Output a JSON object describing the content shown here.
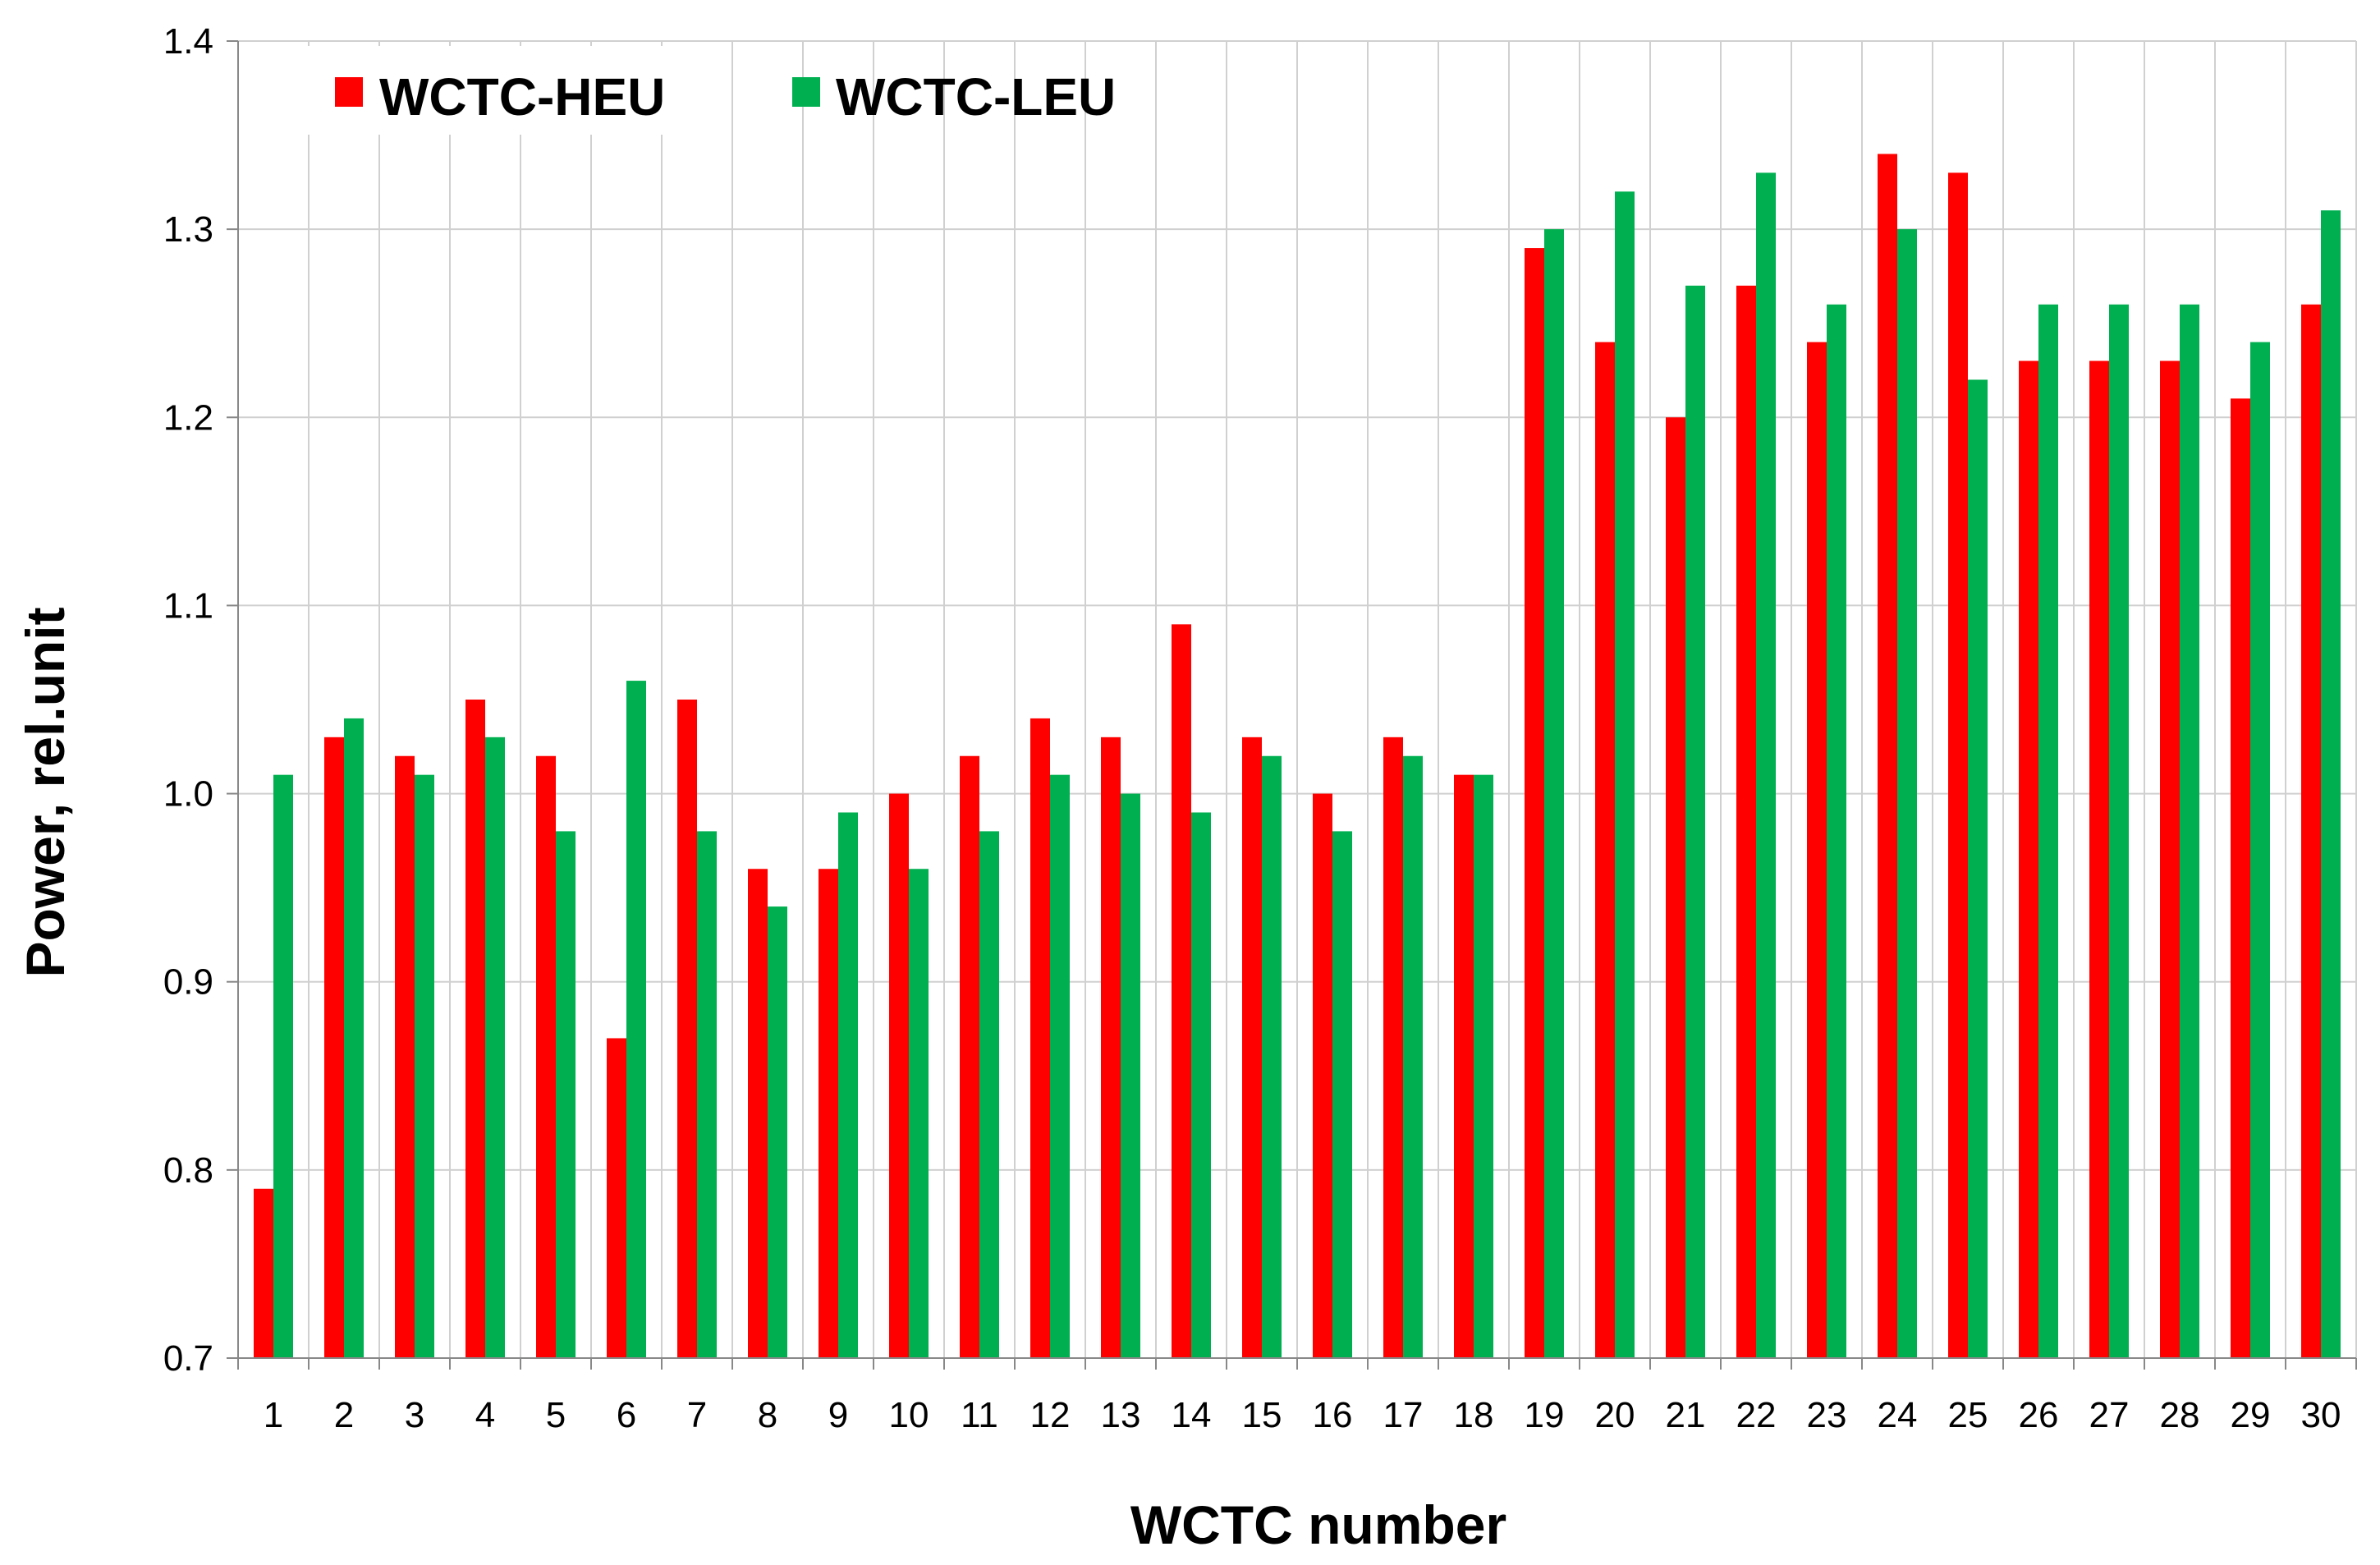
{
  "chart_data": {
    "type": "bar",
    "xlabel": "WCTC number",
    "ylabel": "Power, rel.unit",
    "ylim": [
      0.7,
      1.4
    ],
    "yticks": [
      "0.7",
      "0.8",
      "0.9",
      "1.0",
      "1.1",
      "1.2",
      "1.3",
      "1.4"
    ],
    "categories": [
      "1",
      "2",
      "3",
      "4",
      "5",
      "6",
      "7",
      "8",
      "9",
      "10",
      "11",
      "12",
      "13",
      "14",
      "15",
      "16",
      "17",
      "18",
      "19",
      "20",
      "21",
      "22",
      "23",
      "24",
      "25",
      "26",
      "27",
      "28",
      "29",
      "30"
    ],
    "series": [
      {
        "name": "WCTC-HEU",
        "color": "#ff0000",
        "values": [
          0.79,
          1.03,
          1.02,
          1.05,
          1.02,
          0.87,
          1.05,
          0.96,
          0.96,
          1.0,
          1.02,
          1.04,
          1.03,
          1.09,
          1.03,
          1.0,
          1.03,
          1.01,
          1.29,
          1.24,
          1.2,
          1.27,
          1.24,
          1.34,
          1.33,
          1.23,
          1.23,
          1.23,
          1.21,
          1.26
        ]
      },
      {
        "name": "WCTC-LEU",
        "color": "#00b050",
        "values": [
          1.01,
          1.04,
          1.01,
          1.03,
          0.98,
          1.06,
          0.98,
          0.94,
          0.99,
          0.96,
          0.98,
          1.01,
          1.0,
          0.99,
          1.02,
          0.98,
          1.02,
          1.01,
          1.3,
          1.32,
          1.27,
          1.33,
          1.26,
          1.3,
          1.22,
          1.26,
          1.26,
          1.26,
          1.24,
          1.31
        ]
      }
    ],
    "grid": true,
    "legend_position": "top-left"
  }
}
